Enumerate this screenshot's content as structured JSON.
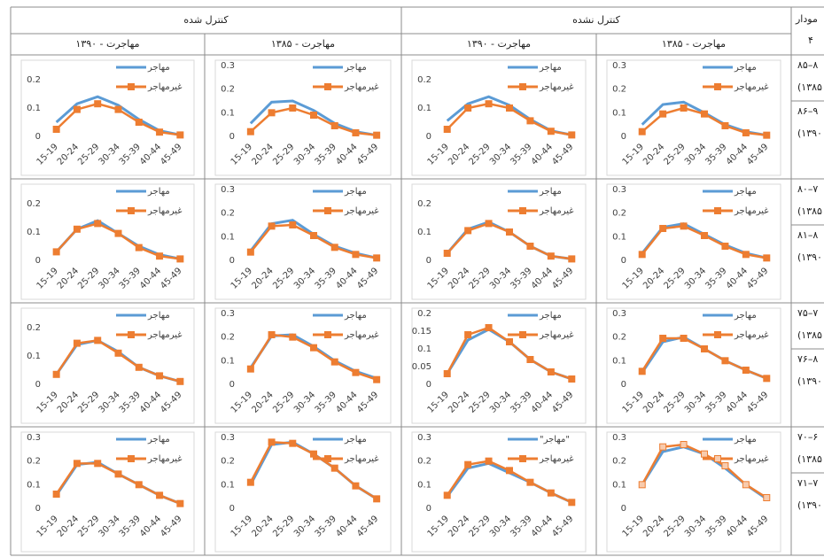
{
  "table": {
    "groups": [
      "کنترل شده",
      "کنترل نشده"
    ],
    "subheaders": [
      "مهاجرت - ۱۳۹۰",
      "مهاجرت - ۱۳۸۵",
      "مهاجرت - ۱۳۹۰",
      "مهاجرت - ۱۳۸۵"
    ],
    "corner": [
      "مودار",
      "۴"
    ],
    "row_labels": [
      [
        [
          "۸۵–۸",
          "(۱۳۸۵"
        ],
        [
          "۸۶–۹",
          "(۱۳۹۰"
        ]
      ],
      [
        [
          "۸۰–۷",
          "(۱۳۸۵"
        ],
        [
          "۸۱–۸",
          "(۱۳۹۰"
        ]
      ],
      [
        [
          "۷۵–۷",
          "(۱۳۸۵"
        ],
        [
          "۷۶–۸",
          "(۱۳۹۰"
        ]
      ],
      [
        [
          "۷۰–۶",
          "(۱۳۸۵"
        ],
        [
          "۷۱–۷",
          "(۱۳۹۰"
        ]
      ]
    ]
  },
  "chart_data": [
    {
      "type": "line",
      "categories": [
        "15-19",
        "20-24",
        "25-29",
        "30-34",
        "35-39",
        "40-44",
        "45-49"
      ],
      "ylim": [
        0,
        0.25
      ],
      "yticks": [
        0,
        0.1,
        0.2
      ],
      "legend": "upper-right",
      "series": [
        {
          "name": "مهاجر",
          "color": "#5b9bd5",
          "values": [
            0.05,
            0.115,
            0.14,
            0.11,
            0.06,
            0.02,
            0.005
          ]
        },
        {
          "name": "غیرمهاجر",
          "color": "#ed7d31",
          "values": [
            0.025,
            0.095,
            0.115,
            0.095,
            0.05,
            0.015,
            0.005
          ]
        }
      ]
    },
    {
      "type": "line",
      "categories": [
        "15-19",
        "20-24",
        "25-29",
        "30-34",
        "35-39",
        "40-44",
        "45-49"
      ],
      "ylim": [
        0,
        0.3
      ],
      "yticks": [
        0,
        0.1,
        0.2,
        0.3
      ],
      "legend": "upper-right",
      "series": [
        {
          "name": "مهاجر",
          "color": "#5b9bd5",
          "values": [
            0.055,
            0.145,
            0.15,
            0.11,
            0.055,
            0.02,
            0.005
          ]
        },
        {
          "name": "غیرمهاجر",
          "color": "#ed7d31",
          "values": [
            0.02,
            0.1,
            0.12,
            0.09,
            0.045,
            0.015,
            0.005
          ]
        }
      ]
    },
    {
      "type": "line",
      "categories": [
        "15-19",
        "20-24",
        "25-29",
        "30-34",
        "35-39",
        "40-44",
        "45-49"
      ],
      "ylim": [
        0,
        0.25
      ],
      "yticks": [
        0,
        0.1,
        0.2
      ],
      "legend": "upper-right",
      "series": [
        {
          "name": "مهاجر",
          "color": "#5b9bd5",
          "values": [
            0.055,
            0.115,
            0.14,
            0.11,
            0.06,
            0.02,
            0.005
          ]
        },
        {
          "name": "غیرمهاجر",
          "color": "#ed7d31",
          "values": [
            0.025,
            0.1,
            0.115,
            0.1,
            0.055,
            0.018,
            0.005
          ]
        }
      ]
    },
    {
      "type": "line",
      "categories": [
        "15-19",
        "20-24",
        "25-29",
        "30-34",
        "35-39",
        "40-44",
        "45-49"
      ],
      "ylim": [
        0,
        0.3
      ],
      "yticks": [
        0,
        0.1,
        0.2,
        0.3
      ],
      "legend": "upper-right",
      "series": [
        {
          "name": "مهاجر",
          "color": "#5b9bd5",
          "values": [
            0.05,
            0.135,
            0.145,
            0.1,
            0.05,
            0.02,
            0.005
          ]
        },
        {
          "name": "غیرمهاجر",
          "color": "#ed7d31",
          "values": [
            0.02,
            0.095,
            0.12,
            0.095,
            0.045,
            0.015,
            0.005
          ]
        }
      ]
    },
    {
      "type": "line",
      "categories": [
        "15-19",
        "20-24",
        "25-29",
        "30-34",
        "35-39",
        "40-44",
        "45-49"
      ],
      "ylim": [
        0,
        0.25
      ],
      "yticks": [
        0,
        0.1,
        0.2
      ],
      "legend": "upper-right",
      "series": [
        {
          "name": "مهاجر",
          "color": "#5b9bd5",
          "values": [
            0.03,
            0.11,
            0.14,
            0.095,
            0.05,
            0.02,
            0.005
          ]
        },
        {
          "name": "غیرمهاجر",
          "color": "#ed7d31",
          "values": [
            0.03,
            0.11,
            0.13,
            0.095,
            0.045,
            0.015,
            0.005
          ]
        }
      ]
    },
    {
      "type": "line",
      "categories": [
        "15-19",
        "20-24",
        "25-29",
        "30-34",
        "35-39",
        "40-44",
        "45-49"
      ],
      "ylim": [
        0,
        0.3
      ],
      "yticks": [
        0,
        0.1,
        0.2,
        0.3
      ],
      "legend": "upper-right",
      "series": [
        {
          "name": "مهاجر",
          "color": "#5b9bd5",
          "values": [
            0.04,
            0.155,
            0.17,
            0.11,
            0.06,
            0.03,
            0.01
          ]
        },
        {
          "name": "غیرمهاجر",
          "color": "#ed7d31",
          "values": [
            0.035,
            0.145,
            0.15,
            0.105,
            0.055,
            0.025,
            0.01
          ]
        }
      ]
    },
    {
      "type": "line",
      "categories": [
        "15-19",
        "20-24",
        "25-29",
        "30-34",
        "35-39",
        "40-44",
        "45-49"
      ],
      "ylim": [
        0,
        0.25
      ],
      "yticks": [
        0,
        0.1,
        0.2
      ],
      "legend": "upper-right",
      "series": [
        {
          "name": "مهاجر",
          "color": "#5b9bd5",
          "values": [
            0.025,
            0.11,
            0.135,
            0.1,
            0.05,
            0.015,
            0.005
          ]
        },
        {
          "name": "غیرمهاجر",
          "color": "#ed7d31",
          "values": [
            0.025,
            0.105,
            0.13,
            0.1,
            0.05,
            0.015,
            0.005
          ]
        }
      ]
    },
    {
      "type": "line",
      "categories": [
        "15-19",
        "20-24",
        "25-29",
        "30-34",
        "35-39",
        "40-44",
        "45-49"
      ],
      "ylim": [
        0,
        0.3
      ],
      "yticks": [
        0,
        0.1,
        0.2,
        0.3
      ],
      "legend": "upper-right",
      "series": [
        {
          "name": "مهاجر",
          "color": "#5b9bd5",
          "values": [
            0.03,
            0.14,
            0.155,
            0.11,
            0.065,
            0.03,
            0.01
          ]
        },
        {
          "name": "غیرمهاجر",
          "color": "#ed7d31",
          "values": [
            0.025,
            0.135,
            0.145,
            0.105,
            0.06,
            0.025,
            0.01
          ]
        }
      ]
    },
    {
      "type": "line",
      "categories": [
        "15-19",
        "20-24",
        "25-29",
        "30-34",
        "35-39",
        "40-44",
        "45-49"
      ],
      "ylim": [
        0,
        0.25
      ],
      "yticks": [
        0,
        0.1,
        0.2
      ],
      "legend": "upper-right",
      "series": [
        {
          "name": "مهاجر",
          "color": "#5b9bd5",
          "values": [
            0.035,
            0.14,
            0.155,
            0.115,
            0.06,
            0.03,
            0.01
          ]
        },
        {
          "name": "غیرمهاجر",
          "color": "#ed7d31",
          "values": [
            0.035,
            0.145,
            0.155,
            0.11,
            0.06,
            0.03,
            0.01
          ]
        }
      ]
    },
    {
      "type": "line",
      "categories": [
        "15-19",
        "20-24",
        "25-29",
        "30-34",
        "35-39",
        "40-44",
        "45-49"
      ],
      "ylim": [
        0,
        0.3
      ],
      "yticks": [
        0,
        0.1,
        0.2,
        0.3
      ],
      "legend": "upper-right",
      "series": [
        {
          "name": "مهاجر",
          "color": "#5b9bd5",
          "values": [
            0.07,
            0.205,
            0.21,
            0.16,
            0.1,
            0.055,
            0.025
          ]
        },
        {
          "name": "غیرمهاجر",
          "color": "#ed7d31",
          "values": [
            0.065,
            0.21,
            0.2,
            0.155,
            0.095,
            0.05,
            0.02
          ]
        }
      ]
    },
    {
      "type": "line",
      "categories": [
        "15-19",
        "20-24",
        "25-29",
        "30-34",
        "35-39",
        "40-44",
        "45-49"
      ],
      "ylim": [
        0,
        0.2
      ],
      "yticks": [
        0,
        0.05,
        0.1,
        0.15,
        0.2
      ],
      "legend": "upper-right",
      "series": [
        {
          "name": "مهاجر",
          "color": "#5b9bd5",
          "values": [
            0.03,
            0.125,
            0.155,
            0.12,
            0.07,
            0.035,
            0.015
          ]
        },
        {
          "name": "غیرمهاجر",
          "color": "#ed7d31",
          "values": [
            0.03,
            0.14,
            0.16,
            0.12,
            0.07,
            0.035,
            0.015
          ]
        }
      ]
    },
    {
      "type": "line",
      "categories": [
        "15-19",
        "20-24",
        "25-29",
        "30-34",
        "35-39",
        "40-44",
        "45-49"
      ],
      "ylim": [
        0,
        0.3
      ],
      "yticks": [
        0,
        0.1,
        0.2,
        0.3
      ],
      "legend": "upper-right",
      "series": [
        {
          "name": "مهاجر",
          "color": "#5b9bd5",
          "values": [
            0.05,
            0.18,
            0.2,
            0.15,
            0.1,
            0.06,
            0.025
          ]
        },
        {
          "name": "غیرمهاجر",
          "color": "#ed7d31",
          "values": [
            0.055,
            0.195,
            0.195,
            0.15,
            0.1,
            0.06,
            0.025
          ]
        }
      ]
    },
    {
      "type": "line",
      "categories": [
        "15-19",
        "20-24",
        "25-29",
        "30-34",
        "35-39",
        "40-44",
        "45-49"
      ],
      "ylim": [
        0,
        0.3
      ],
      "yticks": [
        0,
        0.1,
        0.2,
        0.3
      ],
      "legend": "upper-right",
      "series": [
        {
          "name": "مهاجر",
          "color": "#5b9bd5",
          "values": [
            0.055,
            0.185,
            0.195,
            0.145,
            0.1,
            0.055,
            0.02
          ]
        },
        {
          "name": "غیرمهاجر",
          "color": "#ed7d31",
          "values": [
            0.06,
            0.19,
            0.19,
            0.145,
            0.1,
            0.055,
            0.02
          ]
        }
      ]
    },
    {
      "type": "line",
      "categories": [
        "15-19",
        "20-24",
        "25-29",
        "30-34",
        "35-39",
        "40-44",
        "45-49"
      ],
      "ylim": [
        0,
        0.3
      ],
      "yticks": [
        0,
        0.1,
        0.2,
        0.3
      ],
      "legend": "upper-right",
      "series": [
        {
          "name": "مهاجر",
          "color": "#5b9bd5",
          "values": [
            0.1,
            0.27,
            0.28,
            0.23,
            0.17,
            0.095,
            0.04
          ]
        },
        {
          "name": "غیرمهاجر",
          "color": "#ed7d31",
          "values": [
            0.11,
            0.28,
            0.275,
            0.23,
            0.17,
            0.095,
            0.04
          ]
        }
      ]
    },
    {
      "type": "line",
      "categories": [
        "15-19",
        "20-24",
        "25-29",
        "30-34",
        "35-39",
        "40-44",
        "45-49"
      ],
      "ylim": [
        0,
        0.3
      ],
      "yticks": [
        0,
        0.1,
        0.2,
        0.3
      ],
      "legend": "upper-right",
      "series": [
        {
          "name": "\"مهاجر\"",
          "color": "#5b9bd5",
          "values": [
            0.05,
            0.17,
            0.19,
            0.15,
            0.11,
            0.065,
            0.025
          ]
        },
        {
          "name": "غیرمهاجر",
          "color": "#ed7d31",
          "values": [
            0.055,
            0.185,
            0.2,
            0.16,
            0.11,
            0.065,
            0.025
          ]
        }
      ]
    },
    {
      "type": "line",
      "categories": [
        "15-19",
        "20-24",
        "25-29",
        "30-34",
        "35-39",
        "40-44",
        "45-49"
      ],
      "ylim": [
        0,
        0.3
      ],
      "yticks": [
        0,
        0.1,
        0.2,
        0.3
      ],
      "legend": "upper-right",
      "series": [
        {
          "name": "مهاجر",
          "color": "#5b9bd5",
          "values": [
            0.1,
            0.24,
            0.26,
            0.23,
            0.17,
            0.1,
            0.04
          ]
        },
        {
          "name": "غیرمهاجر",
          "color": "#ed7d31",
          "marker_fill": "#f8cbad",
          "values": [
            0.1,
            0.26,
            0.27,
            0.23,
            0.18,
            0.1,
            0.045
          ]
        }
      ]
    }
  ]
}
